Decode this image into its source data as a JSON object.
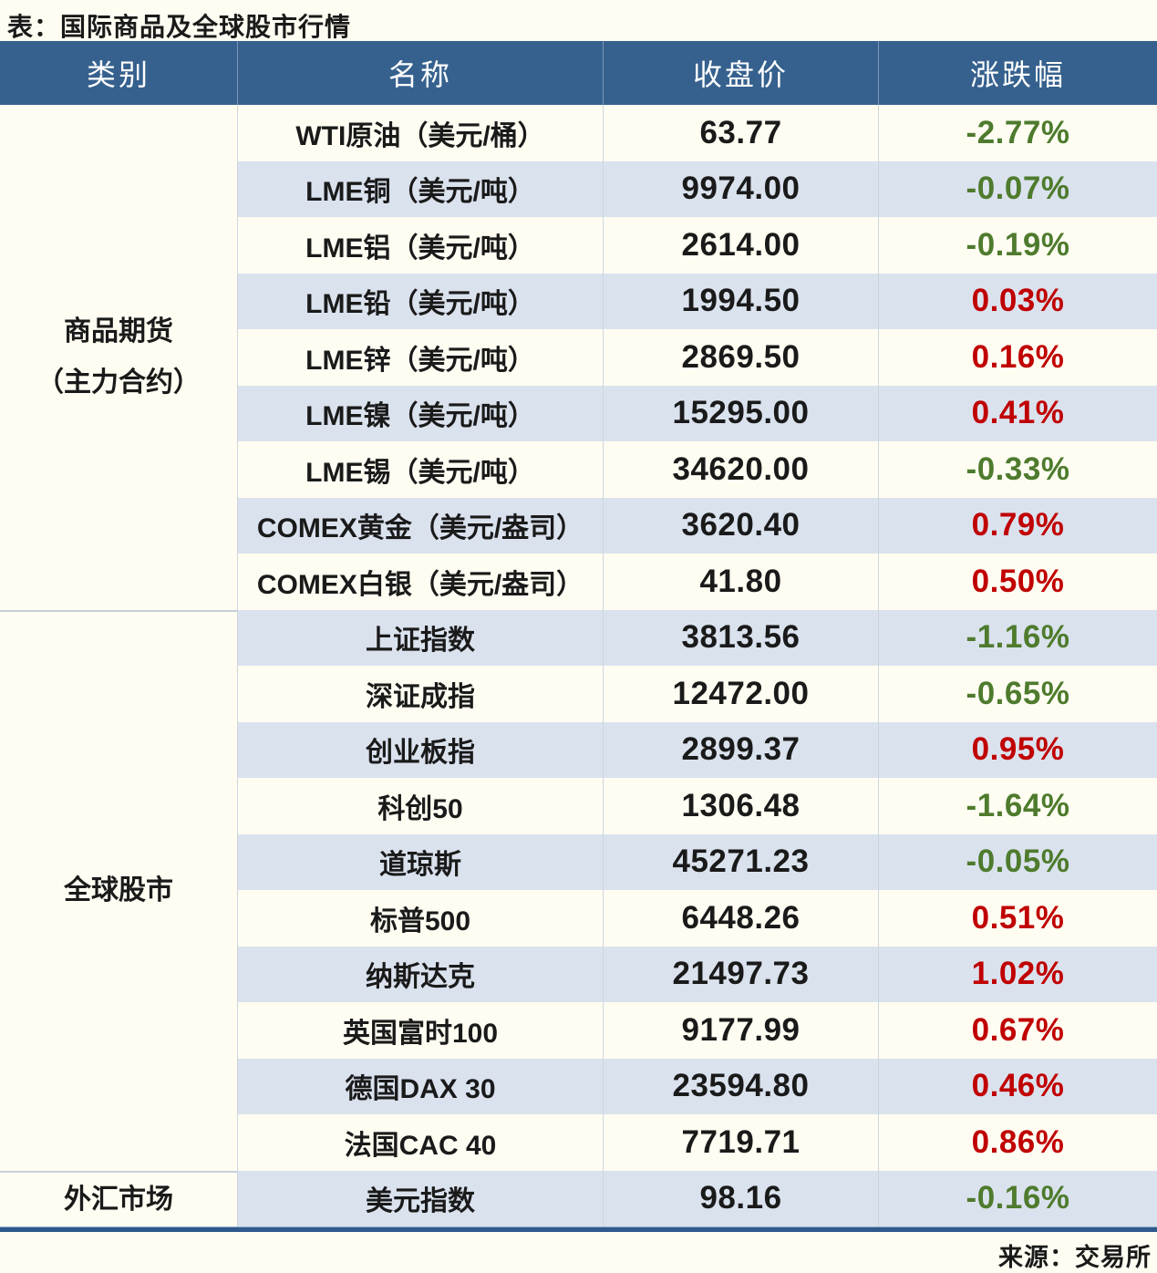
{
  "title": "表：国际商品及全球股市行情",
  "source": "来源：交易所",
  "colors": {
    "header_bg": "#36618E",
    "header_text": "#FFFFFF",
    "row_light_bg": "#FFFDF2",
    "row_shaded_bg": "#DAE2EE",
    "positive_red": "#C00000",
    "negative_green": "#4E7B2D",
    "body_text": "#1A1A1A",
    "bottom_border": "#2D5A8C"
  },
  "chart_data": {
    "type": "table",
    "title": "表：国际商品及全球股市行情",
    "columns": [
      "类别",
      "名称",
      "收盘价",
      "涨跌幅"
    ],
    "groups": [
      {
        "category": "商品期货（主力合约）",
        "category_lines": [
          "商品期货",
          "（主力合约）"
        ],
        "rows": [
          {
            "name": "WTI原油（美元/桶）",
            "close": "63.77",
            "change": "-2.77%"
          },
          {
            "name": "LME铜（美元/吨）",
            "close": "9974.00",
            "change": "-0.07%"
          },
          {
            "name": "LME铝（美元/吨）",
            "close": "2614.00",
            "change": "-0.19%"
          },
          {
            "name": "LME铅（美元/吨）",
            "close": "1994.50",
            "change": "0.03%"
          },
          {
            "name": "LME锌（美元/吨）",
            "close": "2869.50",
            "change": "0.16%"
          },
          {
            "name": "LME镍（美元/吨）",
            "close": "15295.00",
            "change": "0.41%"
          },
          {
            "name": "LME锡（美元/吨）",
            "close": "34620.00",
            "change": "-0.33%"
          },
          {
            "name": "COMEX黄金（美元/盎司）",
            "close": "3620.40",
            "change": "0.79%"
          },
          {
            "name": "COMEX白银（美元/盎司）",
            "close": "41.80",
            "change": "0.50%"
          }
        ]
      },
      {
        "category": "全球股市",
        "category_lines": [
          "全球股市"
        ],
        "rows": [
          {
            "name": "上证指数",
            "close": "3813.56",
            "change": "-1.16%"
          },
          {
            "name": "深证成指",
            "close": "12472.00",
            "change": "-0.65%"
          },
          {
            "name": "创业板指",
            "close": "2899.37",
            "change": "0.95%"
          },
          {
            "name": "科创50",
            "close": "1306.48",
            "change": "-1.64%"
          },
          {
            "name": "道琼斯",
            "close": "45271.23",
            "change": "-0.05%"
          },
          {
            "name": "标普500",
            "close": "6448.26",
            "change": "0.51%"
          },
          {
            "name": "纳斯达克",
            "close": "21497.73",
            "change": "1.02%"
          },
          {
            "name": "英国富时100",
            "close": "9177.99",
            "change": "0.67%"
          },
          {
            "name": "德国DAX 30",
            "close": "23594.80",
            "change": "0.46%"
          },
          {
            "name": "法国CAC 40",
            "close": "7719.71",
            "change": "0.86%"
          }
        ]
      },
      {
        "category": "外汇市场",
        "category_lines": [
          "外汇市场"
        ],
        "rows": [
          {
            "name": "美元指数",
            "close": "98.16",
            "change": "-0.16%"
          }
        ]
      }
    ]
  }
}
